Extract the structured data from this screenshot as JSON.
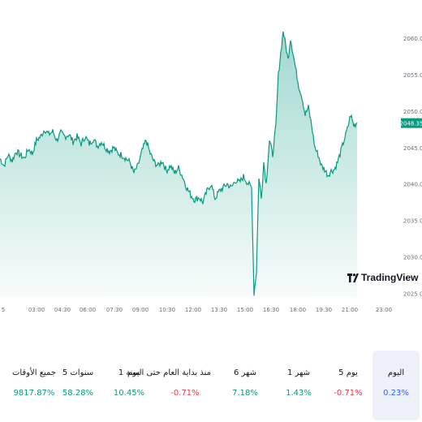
{
  "chart_data": {
    "type": "area",
    "y_ticks": [
      "2060.00",
      "2055.00",
      "2050.00",
      "2045.00",
      "2040.00",
      "2035.00",
      "2030.00",
      "2025.00"
    ],
    "x_ticks": [
      "5",
      "03:00",
      "04:30",
      "06:00",
      "07:30",
      "09:00",
      "10:30",
      "12:00",
      "13:30",
      "15:00",
      "16:30",
      "18:00",
      "19:30",
      "21:00",
      "23:00"
    ],
    "last_price": "2048.35",
    "ylim": [
      2024.5,
      2063
    ],
    "line_color": "#089981",
    "fill_color": "#089981",
    "points": [
      [
        0,
        2043.5
      ],
      [
        5,
        2042.5
      ],
      [
        10,
        2044
      ],
      [
        15,
        2043.2
      ],
      [
        20,
        2044.5
      ],
      [
        25,
        2044
      ],
      [
        30,
        2043.5
      ],
      [
        35,
        2044.8
      ],
      [
        40,
        2044.2
      ],
      [
        45,
        2046
      ],
      [
        50,
        2046.5
      ],
      [
        55,
        2047.5
      ],
      [
        60,
        2046.8
      ],
      [
        65,
        2047.2
      ],
      [
        70,
        2046
      ],
      [
        75,
        2047
      ],
      [
        80,
        2046.5
      ],
      [
        85,
        2046.8
      ],
      [
        90,
        2045.8
      ],
      [
        95,
        2046.5
      ],
      [
        100,
        2045.5
      ],
      [
        105,
        2046.5
      ],
      [
        110,
        2045.5
      ],
      [
        115,
        2046.2
      ],
      [
        120,
        2045.2
      ],
      [
        125,
        2045.8
      ],
      [
        130,
        2045
      ],
      [
        135,
        2044.5
      ],
      [
        140,
        2045
      ],
      [
        145,
        2044.2
      ],
      [
        150,
        2044
      ],
      [
        155,
        2043.5
      ],
      [
        160,
        2043
      ],
      [
        165,
        2041.5
      ],
      [
        170,
        2042.5
      ],
      [
        175,
        2044.5
      ],
      [
        180,
        2046
      ],
      [
        185,
        2044.2
      ],
      [
        190,
        2043
      ],
      [
        195,
        2042.5
      ],
      [
        200,
        2043.2
      ],
      [
        205,
        2041.8
      ],
      [
        210,
        2042.5
      ],
      [
        215,
        2041.5
      ],
      [
        220,
        2042.2
      ],
      [
        225,
        2041
      ],
      [
        230,
        2039.5
      ],
      [
        235,
        2038.5
      ],
      [
        240,
        2037.8
      ],
      [
        245,
        2038.2
      ],
      [
        250,
        2037.5
      ],
      [
        255,
        2039
      ],
      [
        260,
        2040
      ],
      [
        265,
        2038
      ],
      [
        270,
        2039
      ],
      [
        275,
        2039.5
      ],
      [
        280,
        2040
      ],
      [
        285,
        2039.5
      ],
      [
        290,
        2040.5
      ],
      [
        295,
        2040.2
      ],
      [
        300,
        2041
      ],
      [
        305,
        2040.2
      ],
      [
        310,
        2039.5
      ],
      [
        313,
        2025
      ],
      [
        316,
        2028
      ],
      [
        319,
        2041
      ],
      [
        322,
        2038
      ],
      [
        325,
        2043
      ],
      [
        328,
        2040
      ],
      [
        332,
        2046
      ],
      [
        336,
        2044
      ],
      [
        340,
        2048
      ],
      [
        343,
        2055
      ],
      [
        346,
        2058
      ],
      [
        349,
        2061
      ],
      [
        352,
        2059
      ],
      [
        355,
        2057
      ],
      [
        358,
        2060
      ],
      [
        361,
        2058
      ],
      [
        364,
        2056
      ],
      [
        368,
        2053.5
      ],
      [
        372,
        2052
      ],
      [
        376,
        2049.5
      ],
      [
        380,
        2050.5
      ],
      [
        384,
        2048
      ],
      [
        388,
        2045
      ],
      [
        392,
        2044
      ],
      [
        396,
        2042.5
      ],
      [
        400,
        2042
      ],
      [
        404,
        2041.2
      ],
      [
        408,
        2041.8
      ],
      [
        412,
        2042
      ],
      [
        416,
        2043
      ],
      [
        420,
        2044.5
      ],
      [
        424,
        2046
      ],
      [
        428,
        2047.5
      ],
      [
        432,
        2049.5
      ],
      [
        436,
        2048
      ],
      [
        440,
        2048.4
      ]
    ]
  },
  "logo_text": "TradingView",
  "performance": [
    {
      "label": "جميع الأوقات",
      "value": "9817.87%",
      "tone": "pos"
    },
    {
      "label": "5 سنوات",
      "value": "58.28%",
      "tone": "pos"
    },
    {
      "label": "1 سنة",
      "value": "10.45%",
      "tone": "pos"
    },
    {
      "label": "منذ بداية العام حتى اليوم",
      "value": "-0.71%",
      "tone": "neg"
    },
    {
      "label": "6 شهر",
      "value": "7.18%",
      "tone": "pos"
    },
    {
      "label": "1 شهر",
      "value": "1.43%",
      "tone": "pos"
    },
    {
      "label": "5 يوم",
      "value": "-0.71%",
      "tone": "neg"
    },
    {
      "label": "اليوم",
      "value": "0.23%",
      "tone": "neutral"
    }
  ]
}
